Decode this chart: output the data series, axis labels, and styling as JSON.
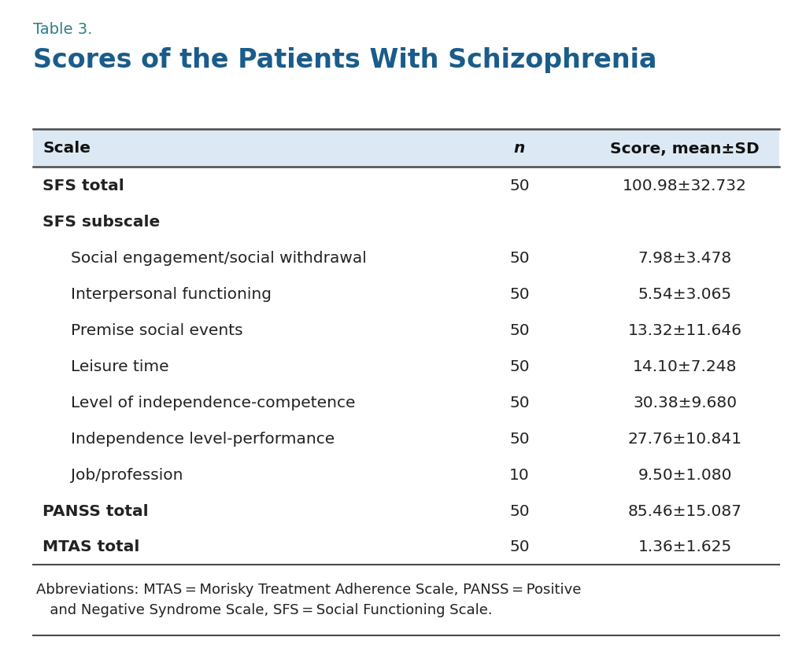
{
  "table_label": "Table 3.",
  "title": "Scores of the Patients With Schizophrenia",
  "col_headers": [
    "Scale",
    "n",
    "Score, mean±SD"
  ],
  "rows": [
    {
      "scale": "SFS total",
      "n": "50",
      "score": "100.98±32.732",
      "bold": true,
      "indent": 0
    },
    {
      "scale": "SFS subscale",
      "n": "",
      "score": "",
      "bold": true,
      "indent": 0
    },
    {
      "scale": "Social engagement/social withdrawal",
      "n": "50",
      "score": "7.98±3.478",
      "bold": false,
      "indent": 1
    },
    {
      "scale": "Interpersonal functioning",
      "n": "50",
      "score": "5.54±3.065",
      "bold": false,
      "indent": 1
    },
    {
      "scale": "Premise social events",
      "n": "50",
      "score": "13.32±11.646",
      "bold": false,
      "indent": 1
    },
    {
      "scale": "Leisure time",
      "n": "50",
      "score": "14.10±7.248",
      "bold": false,
      "indent": 1
    },
    {
      "scale": "Level of independence-competence",
      "n": "50",
      "score": "30.38±9.680",
      "bold": false,
      "indent": 1
    },
    {
      "scale": "Independence level-performance",
      "n": "50",
      "score": "27.76±10.841",
      "bold": false,
      "indent": 1
    },
    {
      "scale": "Job/profession",
      "n": "10",
      "score": "9.50±1.080",
      "bold": false,
      "indent": 1
    },
    {
      "scale": "PANSS total",
      "n": "50",
      "score": "85.46±15.087",
      "bold": true,
      "indent": 0
    },
    {
      "scale": "MTAS total",
      "n": "50",
      "score": "1.36±1.625",
      "bold": true,
      "indent": 0
    }
  ],
  "footnote_line1": "Abbreviations: MTAS = Morisky Treatment Adherence Scale, PANSS = Positive",
  "footnote_line2": "   and Negative Syndrome Scale, SFS = Social Functioning Scale.",
  "header_bg": "#dce9f5",
  "bg_color": "#ffffff",
  "border_color": "#4a4a4a",
  "title_color": "#1a5c8a",
  "table_label_color": "#2e7d8c",
  "text_color": "#222222",
  "header_text_color": "#111111"
}
